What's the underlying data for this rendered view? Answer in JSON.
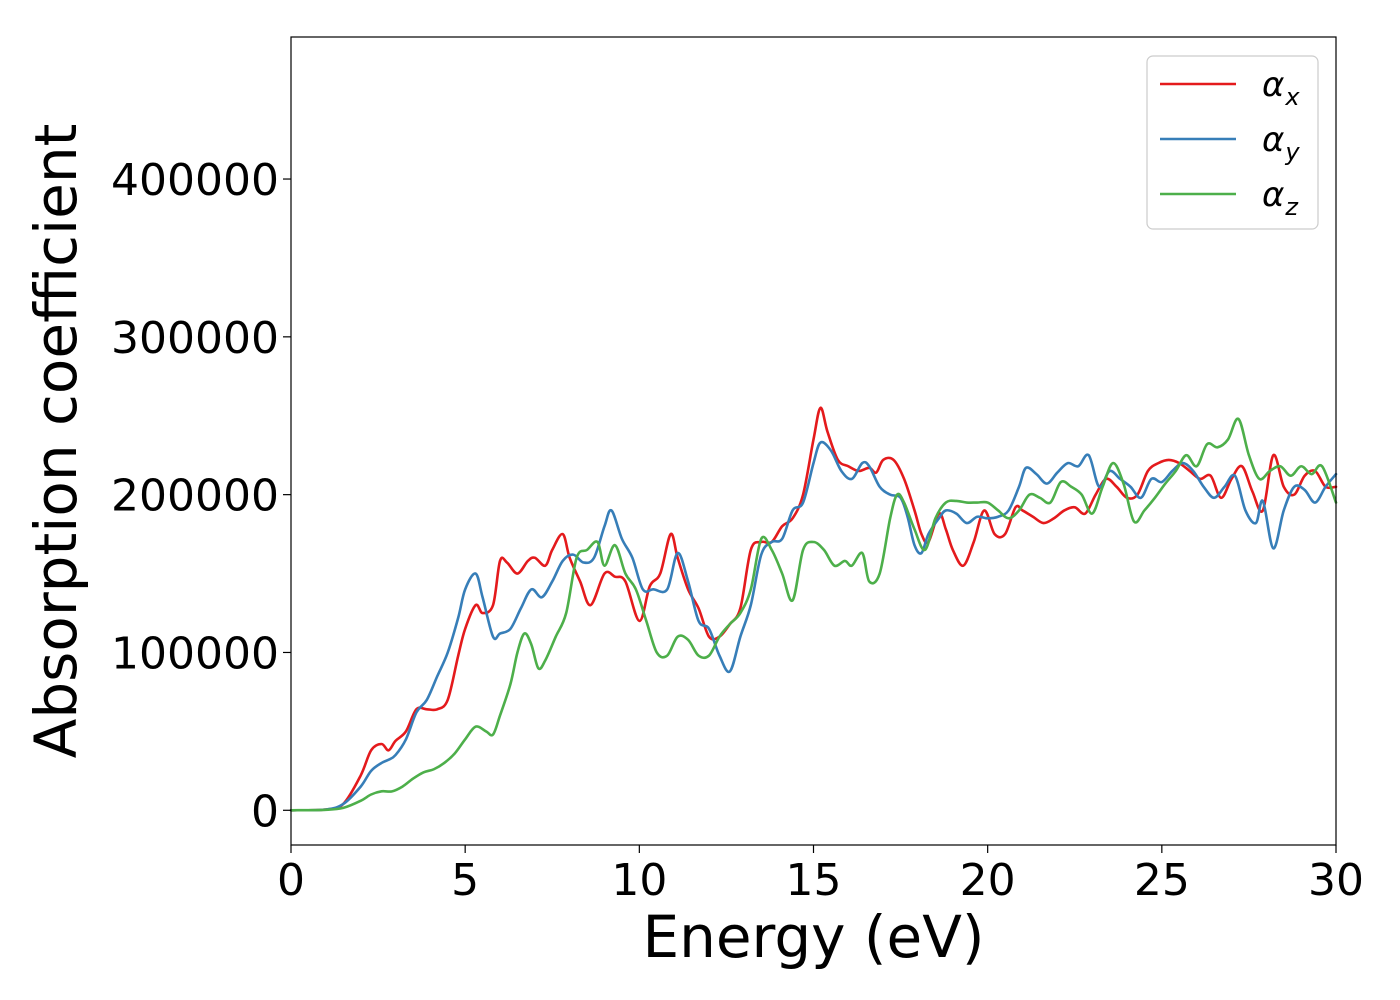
{
  "chart_data": {
    "type": "line",
    "title": "",
    "xlabel": "Energy (eV)",
    "ylabel": "Absorption coefficient",
    "xlim": [
      0,
      30
    ],
    "ylim": [
      -22000,
      490000
    ],
    "xticks": [
      0,
      5,
      10,
      15,
      20,
      25,
      30
    ],
    "yticks": [
      0,
      100000,
      200000,
      300000,
      400000
    ],
    "grid": false,
    "legend_position": "top-right",
    "legend": [
      {
        "base": "α",
        "sub": "x",
        "color": "#e41a1c"
      },
      {
        "base": "α",
        "sub": "y",
        "color": "#377eb8"
      },
      {
        "base": "α",
        "sub": "z",
        "color": "#4daf4a"
      }
    ],
    "series": [
      {
        "name": "αx",
        "color": "#e41a1c",
        "x": [
          0,
          1.0,
          1.5,
          2.0,
          2.3,
          2.6,
          2.8,
          3.0,
          3.3,
          3.6,
          3.9,
          4.2,
          4.5,
          4.8,
          5.0,
          5.3,
          5.5,
          5.8,
          6.0,
          6.2,
          6.5,
          6.8,
          7.0,
          7.3,
          7.5,
          7.8,
          8.0,
          8.3,
          8.6,
          9.0,
          9.3,
          9.6,
          10.0,
          10.3,
          10.6,
          10.9,
          11.1,
          11.4,
          11.7,
          12.0,
          12.3,
          12.6,
          12.9,
          13.2,
          13.5,
          13.8,
          14.1,
          14.4,
          14.7,
          15.0,
          15.2,
          15.4,
          15.7,
          16.0,
          16.3,
          16.6,
          16.8,
          17.0,
          17.3,
          17.6,
          17.9,
          18.1,
          18.3,
          18.6,
          18.8,
          19.0,
          19.3,
          19.6,
          19.9,
          20.2,
          20.5,
          20.8,
          21.0,
          21.3,
          21.6,
          21.9,
          22.2,
          22.5,
          22.8,
          23.1,
          23.4,
          23.7,
          24.0,
          24.3,
          24.6,
          24.9,
          25.2,
          25.5,
          25.8,
          26.1,
          26.4,
          26.7,
          27.0,
          27.3,
          27.6,
          27.9,
          28.2,
          28.5,
          28.8,
          29.1,
          29.4,
          29.7,
          30.0
        ],
        "y": [
          0,
          500,
          4000,
          22000,
          38000,
          42000,
          38000,
          44000,
          50000,
          64000,
          64000,
          64000,
          70000,
          98000,
          115000,
          130000,
          125000,
          130000,
          158000,
          157000,
          150000,
          158000,
          160000,
          155000,
          165000,
          175000,
          160000,
          145000,
          130000,
          150000,
          148000,
          145000,
          120000,
          142000,
          150000,
          175000,
          160000,
          140000,
          128000,
          110000,
          110000,
          118000,
          128000,
          165000,
          170000,
          170000,
          180000,
          185000,
          200000,
          235000,
          255000,
          240000,
          222000,
          218000,
          215000,
          217000,
          214000,
          222000,
          222000,
          210000,
          190000,
          175000,
          170000,
          188000,
          178000,
          165000,
          155000,
          170000,
          190000,
          175000,
          175000,
          192000,
          190000,
          186000,
          182000,
          185000,
          190000,
          192000,
          188000,
          200000,
          210000,
          205000,
          198000,
          200000,
          215000,
          220000,
          222000,
          220000,
          215000,
          210000,
          212000,
          198000,
          210000,
          218000,
          202000,
          190000,
          225000,
          205000,
          200000,
          212000,
          215000,
          205000,
          205000
        ]
      },
      {
        "name": "αy",
        "color": "#377eb8",
        "x": [
          0,
          1.0,
          1.5,
          2.0,
          2.3,
          2.6,
          2.8,
          3.0,
          3.3,
          3.6,
          3.9,
          4.2,
          4.5,
          4.8,
          5.0,
          5.3,
          5.5,
          5.8,
          6.0,
          6.3,
          6.6,
          6.9,
          7.2,
          7.5,
          7.8,
          8.1,
          8.4,
          8.7,
          9.0,
          9.2,
          9.5,
          9.8,
          10.1,
          10.4,
          10.8,
          11.1,
          11.4,
          11.7,
          12.0,
          12.3,
          12.6,
          12.9,
          13.2,
          13.5,
          13.8,
          14.1,
          14.4,
          14.7,
          15.0,
          15.2,
          15.5,
          15.8,
          16.1,
          16.4,
          16.6,
          16.9,
          17.2,
          17.5,
          17.7,
          17.9,
          18.1,
          18.3,
          18.6,
          18.8,
          19.1,
          19.4,
          19.7,
          20.0,
          20.3,
          20.6,
          20.9,
          21.1,
          21.4,
          21.7,
          22.0,
          22.3,
          22.6,
          22.9,
          23.2,
          23.5,
          23.8,
          24.1,
          24.4,
          24.7,
          25.0,
          25.3,
          25.6,
          25.9,
          26.2,
          26.5,
          26.8,
          27.1,
          27.4,
          27.7,
          27.9,
          28.2,
          28.5,
          28.8,
          29.1,
          29.4,
          29.7,
          30.0
        ],
        "y": [
          0,
          500,
          4000,
          15000,
          25000,
          30000,
          32000,
          35000,
          45000,
          62000,
          70000,
          85000,
          100000,
          122000,
          140000,
          150000,
          135000,
          110000,
          112000,
          115000,
          128000,
          140000,
          135000,
          145000,
          158000,
          162000,
          157000,
          160000,
          180000,
          190000,
          172000,
          160000,
          140000,
          140000,
          140000,
          163000,
          145000,
          120000,
          115000,
          98000,
          88000,
          110000,
          130000,
          162000,
          170000,
          172000,
          190000,
          195000,
          220000,
          233000,
          228000,
          215000,
          210000,
          220000,
          218000,
          205000,
          200000,
          198000,
          186000,
          168000,
          163000,
          175000,
          185000,
          190000,
          188000,
          182000,
          186000,
          185000,
          186000,
          190000,
          205000,
          217000,
          213000,
          207000,
          214000,
          220000,
          218000,
          225000,
          205000,
          215000,
          210000,
          205000,
          198000,
          210000,
          208000,
          215000,
          220000,
          215000,
          205000,
          198000,
          205000,
          212000,
          190000,
          182000,
          196000,
          166000,
          190000,
          205000,
          203000,
          195000,
          205000,
          213000
        ]
      },
      {
        "name": "αz",
        "color": "#4daf4a",
        "x": [
          0,
          1.0,
          1.5,
          2.0,
          2.3,
          2.6,
          2.9,
          3.2,
          3.5,
          3.8,
          4.1,
          4.4,
          4.7,
          5.0,
          5.3,
          5.6,
          5.8,
          6.0,
          6.3,
          6.5,
          6.7,
          6.9,
          7.1,
          7.3,
          7.6,
          7.9,
          8.2,
          8.5,
          8.8,
          9.0,
          9.3,
          9.6,
          9.9,
          10.2,
          10.5,
          10.8,
          11.1,
          11.4,
          11.7,
          12.0,
          12.3,
          12.6,
          12.9,
          13.2,
          13.5,
          13.8,
          14.1,
          14.4,
          14.7,
          15.0,
          15.3,
          15.6,
          15.9,
          16.1,
          16.4,
          16.6,
          16.9,
          17.2,
          17.4,
          17.6,
          17.9,
          18.2,
          18.5,
          18.8,
          19.1,
          19.4,
          19.7,
          20.0,
          20.3,
          20.6,
          20.9,
          21.2,
          21.5,
          21.8,
          22.1,
          22.4,
          22.7,
          23.0,
          23.3,
          23.6,
          23.9,
          24.2,
          24.5,
          24.8,
          25.1,
          25.4,
          25.7,
          26.0,
          26.3,
          26.6,
          26.9,
          27.2,
          27.5,
          27.8,
          28.1,
          28.4,
          28.7,
          29.0,
          29.3,
          29.6,
          30.0
        ],
        "y": [
          0,
          300,
          1500,
          6000,
          10000,
          12000,
          12000,
          15000,
          20000,
          24000,
          26000,
          30000,
          36000,
          45000,
          53000,
          50000,
          48000,
          60000,
          80000,
          100000,
          112000,
          105000,
          90000,
          95000,
          110000,
          125000,
          160000,
          165000,
          170000,
          155000,
          168000,
          150000,
          140000,
          120000,
          100000,
          98000,
          110000,
          108000,
          98000,
          98000,
          110000,
          118000,
          125000,
          140000,
          172000,
          165000,
          150000,
          133000,
          165000,
          170000,
          165000,
          155000,
          158000,
          155000,
          163000,
          145000,
          150000,
          185000,
          200000,
          195000,
          178000,
          165000,
          185000,
          195000,
          196000,
          195000,
          195000,
          195000,
          190000,
          185000,
          190000,
          200000,
          198000,
          195000,
          208000,
          205000,
          200000,
          188000,
          205000,
          220000,
          207000,
          183000,
          190000,
          198000,
          207000,
          215000,
          225000,
          218000,
          232000,
          230000,
          235000,
          248000,
          225000,
          210000,
          215000,
          218000,
          212000,
          218000,
          213000,
          218000,
          195000
        ]
      }
    ]
  }
}
